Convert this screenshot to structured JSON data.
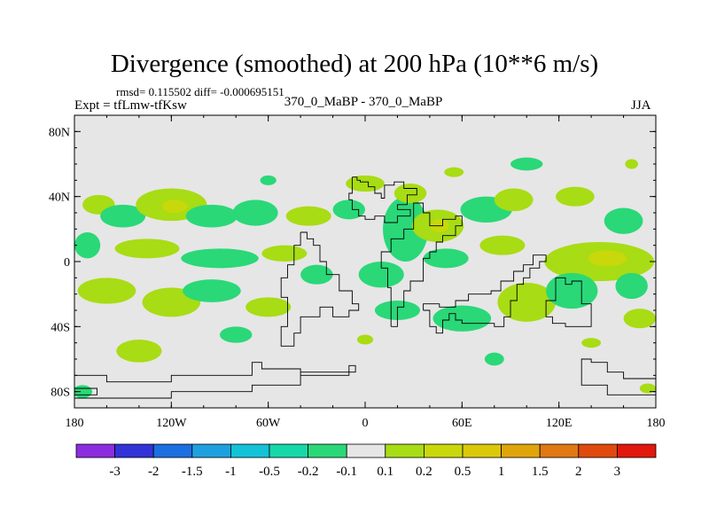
{
  "chart_data": {
    "type": "heatmap",
    "title": "Divergence (smoothed) at 200 hPa (10**6 m/s)",
    "stats_text": "rmsd= 0.115502  diff= -0.000695151",
    "left_label": "Expt = tfLmw-tfKsw",
    "center_label": "370_0_MaBP - 370_0_MaBP",
    "right_label": "JJA",
    "x_range": [
      -180,
      180
    ],
    "y_range": [
      -90,
      90
    ],
    "x_ticks": [
      {
        "value": -180,
        "label": "180"
      },
      {
        "value": -120,
        "label": "120W"
      },
      {
        "value": -60,
        "label": "60W"
      },
      {
        "value": 0,
        "label": "0"
      },
      {
        "value": 60,
        "label": "60E"
      },
      {
        "value": 120,
        "label": "120E"
      },
      {
        "value": 180,
        "label": "180"
      }
    ],
    "y_ticks": [
      {
        "value": 80,
        "label": "80N"
      },
      {
        "value": 40,
        "label": "40N"
      },
      {
        "value": 0,
        "label": "0"
      },
      {
        "value": -40,
        "label": "40S"
      },
      {
        "value": -80,
        "label": "80S"
      }
    ],
    "colorbar": {
      "colors": [
        "#8c2de0",
        "#3232d8",
        "#1c6fe0",
        "#1ea0e0",
        "#14c2d8",
        "#17d8a8",
        "#2ad878",
        "#e6e6e6",
        "#a8dc14",
        "#c8d80a",
        "#dcc80a",
        "#e0a50a",
        "#e07814",
        "#e04a0e",
        "#e0180e"
      ],
      "labels": [
        "-3",
        "-2",
        "-1.5",
        "-1",
        "-0.5",
        "-0.2",
        "-0.1",
        "0.1",
        "0.2",
        "0.5",
        "1",
        "1.5",
        "2",
        "3"
      ]
    },
    "blobs": [
      {
        "lon": -165,
        "lat": 35,
        "rx": 10,
        "ry": 6,
        "level": 1
      },
      {
        "lon": -150,
        "lat": 28,
        "rx": 14,
        "ry": 7,
        "level": -1
      },
      {
        "lon": -120,
        "lat": 35,
        "rx": 22,
        "ry": 10,
        "level": 1
      },
      {
        "lon": -118,
        "lat": 34,
        "rx": 8,
        "ry": 4,
        "level": 2
      },
      {
        "lon": -95,
        "lat": 28,
        "rx": 16,
        "ry": 7,
        "level": -1
      },
      {
        "lon": -68,
        "lat": 30,
        "rx": 14,
        "ry": 8,
        "level": -1
      },
      {
        "lon": -35,
        "lat": 28,
        "rx": 14,
        "ry": 6,
        "level": 1
      },
      {
        "lon": -10,
        "lat": 32,
        "rx": 10,
        "ry": 6,
        "level": -1
      },
      {
        "lon": 25,
        "lat": 20,
        "rx": 14,
        "ry": 20,
        "level": -1
      },
      {
        "lon": 28,
        "lat": 42,
        "rx": 10,
        "ry": 6,
        "level": 1
      },
      {
        "lon": 45,
        "lat": 22,
        "rx": 16,
        "ry": 10,
        "level": 1
      },
      {
        "lon": 46,
        "lat": 22,
        "rx": 6,
        "ry": 4,
        "level": 2
      },
      {
        "lon": 75,
        "lat": 32,
        "rx": 16,
        "ry": 8,
        "level": -1
      },
      {
        "lon": 92,
        "lat": 38,
        "rx": 12,
        "ry": 7,
        "level": 1
      },
      {
        "lon": 130,
        "lat": 40,
        "rx": 12,
        "ry": 6,
        "level": 1
      },
      {
        "lon": 160,
        "lat": 25,
        "rx": 12,
        "ry": 8,
        "level": -1
      },
      {
        "lon": 0,
        "lat": 48,
        "rx": 12,
        "ry": 5,
        "level": 1
      },
      {
        "lon": 100,
        "lat": 60,
        "rx": 10,
        "ry": 4,
        "level": -1
      },
      {
        "lon": 55,
        "lat": 55,
        "rx": 6,
        "ry": 3,
        "level": 1
      },
      {
        "lon": -60,
        "lat": 50,
        "rx": 5,
        "ry": 3,
        "level": -1
      },
      {
        "lon": 165,
        "lat": 60,
        "rx": 4,
        "ry": 3,
        "level": 1
      },
      {
        "lon": -172,
        "lat": 10,
        "rx": 8,
        "ry": 8,
        "level": -1
      },
      {
        "lon": -135,
        "lat": 8,
        "rx": 20,
        "ry": 6,
        "level": 1
      },
      {
        "lon": -90,
        "lat": 2,
        "rx": 24,
        "ry": 6,
        "level": -1
      },
      {
        "lon": -50,
        "lat": 5,
        "rx": 14,
        "ry": 5,
        "level": 1
      },
      {
        "lon": -30,
        "lat": -8,
        "rx": 10,
        "ry": 6,
        "level": -1
      },
      {
        "lon": 10,
        "lat": -8,
        "rx": 14,
        "ry": 8,
        "level": -1
      },
      {
        "lon": 50,
        "lat": 2,
        "rx": 14,
        "ry": 6,
        "level": -1
      },
      {
        "lon": 85,
        "lat": 10,
        "rx": 14,
        "ry": 6,
        "level": 1
      },
      {
        "lon": 145,
        "lat": 0,
        "rx": 34,
        "ry": 12,
        "level": 1
      },
      {
        "lon": 150,
        "lat": 2,
        "rx": 12,
        "ry": 5,
        "level": 2
      },
      {
        "lon": 165,
        "lat": -15,
        "rx": 10,
        "ry": 8,
        "level": -1
      },
      {
        "lon": -160,
        "lat": -18,
        "rx": 18,
        "ry": 8,
        "level": 1
      },
      {
        "lon": -120,
        "lat": -25,
        "rx": 18,
        "ry": 9,
        "level": 1
      },
      {
        "lon": -95,
        "lat": -18,
        "rx": 18,
        "ry": 7,
        "level": -1
      },
      {
        "lon": -60,
        "lat": -28,
        "rx": 14,
        "ry": 6,
        "level": 1
      },
      {
        "lon": 20,
        "lat": -30,
        "rx": 14,
        "ry": 6,
        "level": -1
      },
      {
        "lon": 60,
        "lat": -35,
        "rx": 18,
        "ry": 8,
        "level": -1
      },
      {
        "lon": 100,
        "lat": -25,
        "rx": 18,
        "ry": 12,
        "level": 1
      },
      {
        "lon": 128,
        "lat": -18,
        "rx": 16,
        "ry": 11,
        "level": -1
      },
      {
        "lon": 170,
        "lat": -35,
        "rx": 10,
        "ry": 6,
        "level": 1
      },
      {
        "lon": -140,
        "lat": -55,
        "rx": 14,
        "ry": 7,
        "level": 1
      },
      {
        "lon": -80,
        "lat": -45,
        "rx": 10,
        "ry": 5,
        "level": -1
      },
      {
        "lon": 0,
        "lat": -48,
        "rx": 5,
        "ry": 3,
        "level": 1
      },
      {
        "lon": 80,
        "lat": -60,
        "rx": 6,
        "ry": 4,
        "level": -1
      },
      {
        "lon": 140,
        "lat": -50,
        "rx": 6,
        "ry": 3,
        "level": 1
      },
      {
        "lon": -175,
        "lat": -80,
        "rx": 6,
        "ry": 4,
        "level": -1
      },
      {
        "lon": 175,
        "lat": -78,
        "rx": 5,
        "ry": 3,
        "level": 1
      }
    ],
    "coastlines": [
      [
        [
          -8,
          52
        ],
        [
          -5,
          52
        ],
        [
          -5,
          50
        ],
        [
          -3,
          50
        ],
        [
          -3,
          49
        ],
        [
          2,
          49
        ],
        [
          2,
          46
        ],
        [
          6,
          46
        ],
        [
          6,
          42
        ],
        [
          10,
          42
        ],
        [
          10,
          39
        ],
        [
          12,
          39
        ],
        [
          12,
          47
        ],
        [
          18,
          47
        ],
        [
          18,
          49
        ],
        [
          24,
          49
        ],
        [
          24,
          45
        ],
        [
          32,
          45
        ],
        [
          32,
          41
        ],
        [
          26,
          41
        ],
        [
          26,
          35
        ],
        [
          20,
          35
        ],
        [
          20,
          32
        ],
        [
          28,
          32
        ],
        [
          28,
          28
        ],
        [
          20,
          28
        ],
        [
          20,
          24
        ],
        [
          12,
          24
        ],
        [
          12,
          28
        ],
        [
          6,
          28
        ],
        [
          6,
          26
        ],
        [
          0,
          26
        ],
        [
          0,
          28
        ],
        [
          -4,
          28
        ],
        [
          -4,
          32
        ],
        [
          -8,
          32
        ],
        [
          -8,
          38
        ],
        [
          -10,
          38
        ],
        [
          -10,
          42
        ],
        [
          -8,
          42
        ],
        [
          -8,
          52
        ]
      ],
      [
        [
          16,
          -40
        ],
        [
          20,
          -40
        ],
        [
          20,
          -28
        ],
        [
          24,
          -28
        ],
        [
          24,
          -18
        ],
        [
          28,
          -18
        ],
        [
          28,
          -12
        ],
        [
          36,
          -12
        ],
        [
          36,
          2
        ],
        [
          40,
          2
        ],
        [
          40,
          6
        ],
        [
          44,
          6
        ],
        [
          44,
          12
        ],
        [
          48,
          12
        ],
        [
          48,
          16
        ],
        [
          56,
          16
        ],
        [
          56,
          22
        ],
        [
          60,
          22
        ],
        [
          60,
          28
        ],
        [
          56,
          28
        ],
        [
          56,
          26
        ],
        [
          48,
          26
        ],
        [
          48,
          22
        ],
        [
          40,
          22
        ],
        [
          40,
          30
        ],
        [
          36,
          30
        ],
        [
          36,
          36
        ],
        [
          30,
          36
        ],
        [
          30,
          20
        ],
        [
          24,
          20
        ],
        [
          24,
          14
        ],
        [
          16,
          14
        ],
        [
          16,
          6
        ],
        [
          10,
          6
        ],
        [
          10,
          -4
        ],
        [
          14,
          -4
        ],
        [
          14,
          -16
        ],
        [
          16,
          -16
        ],
        [
          16,
          -40
        ]
      ],
      [
        [
          -40,
          18
        ],
        [
          -36,
          18
        ],
        [
          -36,
          14
        ],
        [
          -32,
          14
        ],
        [
          -32,
          10
        ],
        [
          -28,
          10
        ],
        [
          -28,
          0
        ],
        [
          -24,
          0
        ],
        [
          -24,
          -8
        ],
        [
          -16,
          -8
        ],
        [
          -16,
          -18
        ],
        [
          -8,
          -18
        ],
        [
          -8,
          -26
        ],
        [
          -4,
          -26
        ],
        [
          -4,
          -30
        ],
        [
          -10,
          -30
        ],
        [
          -10,
          -34
        ],
        [
          -20,
          -34
        ],
        [
          -20,
          -28
        ],
        [
          -28,
          -28
        ],
        [
          -28,
          -34
        ],
        [
          -40,
          -34
        ],
        [
          -40,
          -44
        ],
        [
          -44,
          -44
        ],
        [
          -44,
          -52
        ],
        [
          -52,
          -52
        ],
        [
          -52,
          -40
        ],
        [
          -48,
          -40
        ],
        [
          -48,
          -22
        ],
        [
          -52,
          -22
        ],
        [
          -52,
          -10
        ],
        [
          -48,
          -10
        ],
        [
          -48,
          -2
        ],
        [
          -44,
          -2
        ],
        [
          -44,
          10
        ],
        [
          -40,
          10
        ],
        [
          -40,
          18
        ]
      ],
      [
        [
          36,
          -30
        ],
        [
          40,
          -30
        ],
        [
          40,
          -40
        ],
        [
          44,
          -40
        ],
        [
          44,
          -44
        ],
        [
          48,
          -44
        ],
        [
          48,
          -36
        ],
        [
          52,
          -36
        ],
        [
          52,
          -32
        ],
        [
          56,
          -32
        ],
        [
          56,
          -36
        ],
        [
          60,
          -36
        ],
        [
          60,
          -38
        ],
        [
          80,
          -38
        ],
        [
          80,
          -40
        ],
        [
          86,
          -40
        ],
        [
          86,
          -34
        ],
        [
          90,
          -34
        ],
        [
          90,
          -24
        ],
        [
          94,
          -24
        ],
        [
          94,
          -14
        ],
        [
          98,
          -14
        ],
        [
          98,
          -10
        ],
        [
          102,
          -10
        ],
        [
          102,
          -4
        ],
        [
          108,
          -4
        ],
        [
          108,
          0
        ],
        [
          112,
          0
        ],
        [
          112,
          4
        ],
        [
          104,
          4
        ],
        [
          104,
          -2
        ],
        [
          98,
          -2
        ],
        [
          98,
          -6
        ],
        [
          92,
          -6
        ],
        [
          92,
          -12
        ],
        [
          84,
          -12
        ],
        [
          84,
          -18
        ],
        [
          78,
          -18
        ],
        [
          78,
          -20
        ],
        [
          64,
          -20
        ],
        [
          64,
          -24
        ],
        [
          56,
          -24
        ],
        [
          56,
          -28
        ],
        [
          46,
          -28
        ],
        [
          46,
          -26
        ],
        [
          36,
          -26
        ],
        [
          36,
          -30
        ]
      ],
      [
        [
          118,
          -10
        ],
        [
          124,
          -10
        ],
        [
          124,
          -14
        ],
        [
          128,
          -14
        ],
        [
          128,
          -12
        ],
        [
          134,
          -12
        ],
        [
          134,
          -26
        ],
        [
          140,
          -26
        ],
        [
          140,
          -40
        ],
        [
          124,
          -40
        ],
        [
          124,
          -38
        ],
        [
          116,
          -38
        ],
        [
          116,
          -34
        ],
        [
          112,
          -34
        ],
        [
          112,
          -24
        ],
        [
          118,
          -24
        ],
        [
          118,
          -10
        ]
      ],
      [
        [
          -180,
          -70
        ],
        [
          -160,
          -70
        ],
        [
          -160,
          -74
        ],
        [
          -120,
          -74
        ],
        [
          -120,
          -70
        ],
        [
          -70,
          -70
        ],
        [
          -70,
          -62
        ],
        [
          -64,
          -62
        ],
        [
          -64,
          -66
        ],
        [
          -40,
          -66
        ],
        [
          -40,
          -70
        ],
        [
          -10,
          -70
        ],
        [
          -10,
          -64
        ],
        [
          -6,
          -64
        ],
        [
          -6,
          -68
        ],
        [
          -40,
          -68
        ],
        [
          -40,
          -76
        ],
        [
          -70,
          -76
        ],
        [
          -70,
          -80
        ],
        [
          -120,
          -80
        ],
        [
          -120,
          -84
        ],
        [
          -180,
          -84
        ]
      ],
      [
        [
          180,
          -72
        ],
        [
          160,
          -72
        ],
        [
          160,
          -68
        ],
        [
          150,
          -68
        ],
        [
          150,
          -62
        ],
        [
          140,
          -62
        ],
        [
          140,
          -60
        ],
        [
          134,
          -60
        ],
        [
          134,
          -76
        ],
        [
          150,
          -76
        ],
        [
          150,
          -82
        ],
        [
          180,
          -82
        ]
      ],
      [
        [
          -180,
          -78
        ],
        [
          -166,
          -78
        ],
        [
          -166,
          -82
        ],
        [
          -180,
          -82
        ]
      ]
    ]
  }
}
